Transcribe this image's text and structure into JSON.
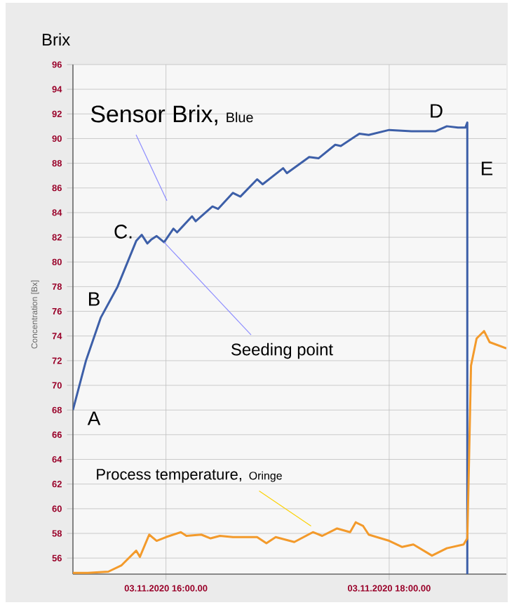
{
  "chart_data": {
    "type": "line",
    "title": "Brix",
    "ylabel": "Concentration [Bx]",
    "xlim": [
      "2020-11-03T15:10",
      "2020-11-03T19:03"
    ],
    "ylim": [
      54.7,
      96
    ],
    "xticks": [
      {
        "value": "2020-11-03T16:00",
        "label": "03.11.2020 16:00.00"
      },
      {
        "value": "2020-11-03T18:00",
        "label": "03.11.2020 18:00.00"
      }
    ],
    "yticks": [
      56,
      58,
      60,
      62,
      64,
      66,
      68,
      70,
      72,
      74,
      76,
      78,
      80,
      82,
      84,
      86,
      88,
      90,
      92,
      94,
      96
    ],
    "grid": true,
    "annotations": [
      "Sensor Brix,",
      "Blue",
      "C.",
      "B",
      "A",
      "D",
      "E",
      {
        "text": "Seeding point",
        "x": "2020-11-03T15:59",
        "y": 81.6
      },
      "Process temperature,",
      {
        "text": "Oringe",
        "x": "2020-11-03T17:18",
        "y": 58.6
      }
    ],
    "series": [
      {
        "color": "#3d5fa8",
        "x": [
          "2020-11-03T15:10",
          "2020-11-03T15:17",
          "2020-11-03T15:25",
          "2020-11-03T15:34",
          "2020-11-03T15:44",
          "2020-11-03T15:47",
          "2020-11-03T15:50",
          "2020-11-03T15:52",
          "2020-11-03T15:55",
          "2020-11-03T15:59",
          "2020-11-03T16:04",
          "2020-11-03T16:06",
          "2020-11-03T16:14",
          "2020-11-03T16:16",
          "2020-11-03T16:25",
          "2020-11-03T16:28",
          "2020-11-03T16:36",
          "2020-11-03T16:40",
          "2020-11-03T16:49",
          "2020-11-03T16:52",
          "2020-11-03T17:03",
          "2020-11-03T17:05",
          "2020-11-03T17:17",
          "2020-11-03T17:22",
          "2020-11-03T17:31",
          "2020-11-03T17:34",
          "2020-11-03T17:44",
          "2020-11-03T17:49",
          "2020-11-03T18:00",
          "2020-11-03T18:12",
          "2020-11-03T18:25",
          "2020-11-03T18:31",
          "2020-11-03T18:37",
          "2020-11-03T18:41",
          "2020-11-03T18:42",
          "2020-11-03T18:42"
        ],
        "values": [
          68,
          72,
          75.5,
          78,
          81.7,
          82.2,
          81.5,
          81.8,
          82.1,
          81.6,
          82.7,
          82.4,
          83.7,
          83.3,
          84.5,
          84.3,
          85.6,
          85.3,
          86.7,
          86.3,
          87.6,
          87.2,
          88.5,
          88.4,
          89.5,
          89.4,
          90.4,
          90.3,
          90.7,
          90.6,
          90.6,
          91.0,
          90.9,
          90.9,
          91.3,
          54.7
        ]
      },
      {
        "color": "#f39a2b",
        "x": [
          "2020-11-03T15:10",
          "2020-11-03T15:18",
          "2020-11-03T15:29",
          "2020-11-03T15:36",
          "2020-11-03T15:44",
          "2020-11-03T15:46",
          "2020-11-03T15:51",
          "2020-11-03T15:55",
          "2020-11-03T16:00",
          "2020-11-03T16:08",
          "2020-11-03T16:11",
          "2020-11-03T16:19",
          "2020-11-03T16:24",
          "2020-11-03T16:29",
          "2020-11-03T16:36",
          "2020-11-03T16:49",
          "2020-11-03T16:54",
          "2020-11-03T16:59",
          "2020-11-03T17:09",
          "2020-11-03T17:19",
          "2020-11-03T17:24",
          "2020-11-03T17:32",
          "2020-11-03T17:39",
          "2020-11-03T17:42",
          "2020-11-03T17:46",
          "2020-11-03T17:49",
          "2020-11-03T18:00",
          "2020-11-03T18:07",
          "2020-11-03T18:13",
          "2020-11-03T18:23",
          "2020-11-03T18:31",
          "2020-11-03T18:40",
          "2020-11-03T18:42",
          "2020-11-03T18:43",
          "2020-11-03T18:44",
          "2020-11-03T18:47",
          "2020-11-03T18:51",
          "2020-11-03T18:54",
          "2020-11-03T19:03"
        ],
        "values": [
          54.8,
          54.8,
          54.9,
          55.4,
          56.6,
          56.1,
          57.9,
          57.4,
          57.7,
          58.1,
          57.8,
          57.9,
          57.6,
          57.8,
          57.7,
          57.7,
          57.2,
          57.7,
          57.3,
          58.1,
          57.8,
          58.4,
          58.1,
          58.9,
          58.6,
          57.9,
          57.4,
          56.9,
          57.1,
          56.2,
          56.8,
          57.1,
          57.6,
          64.4,
          71.6,
          73.8,
          74.4,
          73.5,
          73.0
        ]
      }
    ]
  }
}
